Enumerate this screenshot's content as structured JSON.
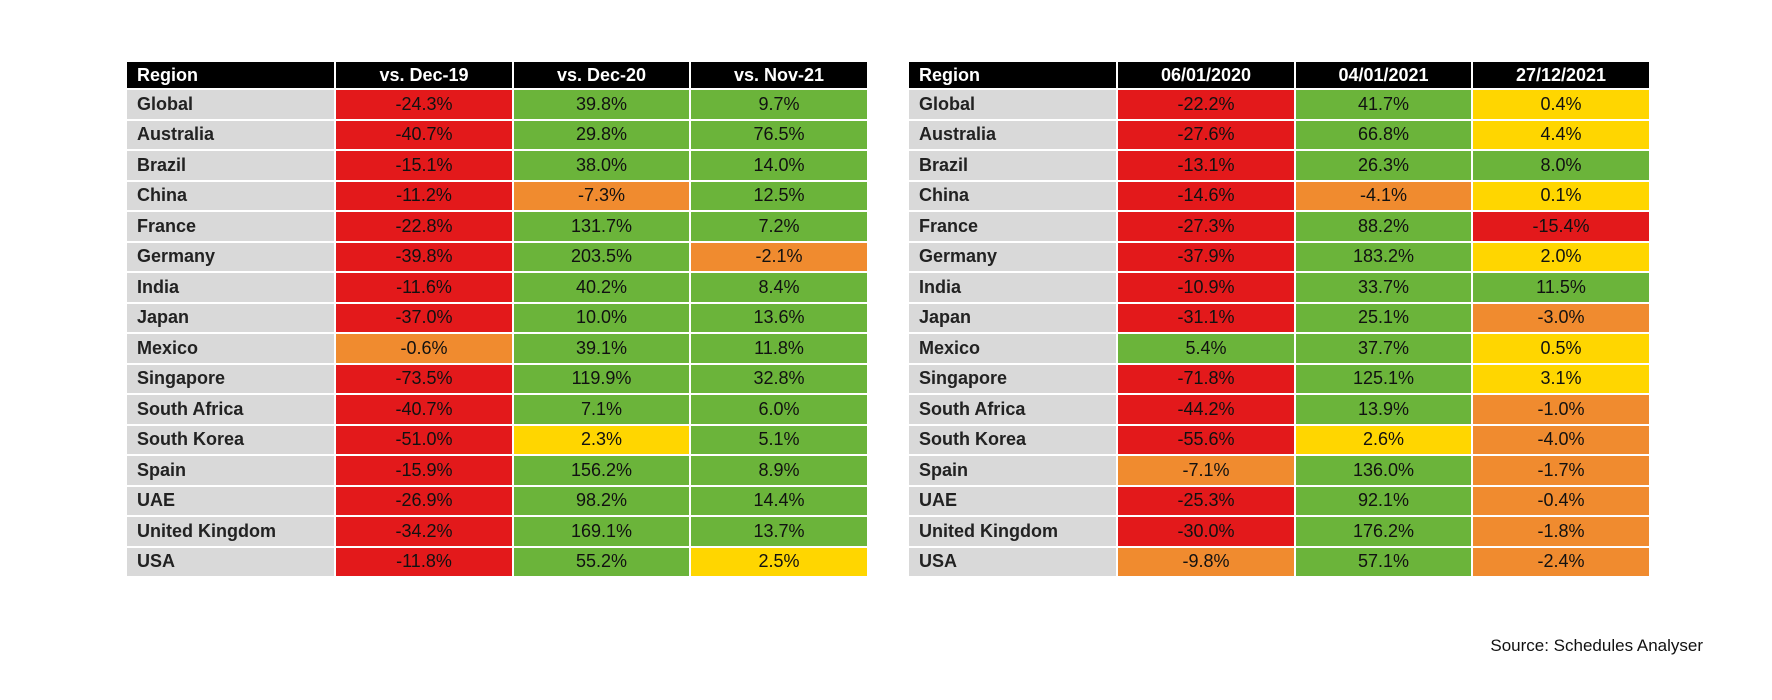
{
  "tables": [
    {
      "header": [
        "Region",
        "vs. Dec-19",
        "vs. Dec-20",
        "vs. Nov-21"
      ],
      "rows": [
        {
          "cells": [
            "Global",
            "-24.3%",
            "39.8%",
            "9.7%"
          ],
          "fills": [
            "#e3191b",
            "#6bb43a",
            "#6bb43a"
          ]
        },
        {
          "cells": [
            "Australia",
            "-40.7%",
            "29.8%",
            "76.5%"
          ],
          "fills": [
            "#e3191b",
            "#6bb43a",
            "#6bb43a"
          ]
        },
        {
          "cells": [
            "Brazil",
            "-15.1%",
            "38.0%",
            "14.0%"
          ],
          "fills": [
            "#e3191b",
            "#6bb43a",
            "#6bb43a"
          ]
        },
        {
          "cells": [
            "China",
            "-11.2%",
            "-7.3%",
            "12.5%"
          ],
          "fills": [
            "#e3191b",
            "#f08b2f",
            "#6bb43a"
          ]
        },
        {
          "cells": [
            "France",
            "-22.8%",
            "131.7%",
            "7.2%"
          ],
          "fills": [
            "#e3191b",
            "#6bb43a",
            "#6bb43a"
          ]
        },
        {
          "cells": [
            "Germany",
            "-39.8%",
            "203.5%",
            "-2.1%"
          ],
          "fills": [
            "#e3191b",
            "#6bb43a",
            "#f08b2f"
          ]
        },
        {
          "cells": [
            "India",
            "-11.6%",
            "40.2%",
            "8.4%"
          ],
          "fills": [
            "#e3191b",
            "#6bb43a",
            "#6bb43a"
          ]
        },
        {
          "cells": [
            "Japan",
            "-37.0%",
            "10.0%",
            "13.6%"
          ],
          "fills": [
            "#e3191b",
            "#6bb43a",
            "#6bb43a"
          ]
        },
        {
          "cells": [
            "Mexico",
            "-0.6%",
            "39.1%",
            "11.8%"
          ],
          "fills": [
            "#f08b2f",
            "#6bb43a",
            "#6bb43a"
          ]
        },
        {
          "cells": [
            "Singapore",
            "-73.5%",
            "119.9%",
            "32.8%"
          ],
          "fills": [
            "#e3191b",
            "#6bb43a",
            "#6bb43a"
          ]
        },
        {
          "cells": [
            "South Africa",
            "-40.7%",
            "7.1%",
            "6.0%"
          ],
          "fills": [
            "#e3191b",
            "#6bb43a",
            "#6bb43a"
          ]
        },
        {
          "cells": [
            "South Korea",
            "-51.0%",
            "2.3%",
            "5.1%"
          ],
          "fills": [
            "#e3191b",
            "#ffd600",
            "#6bb43a"
          ]
        },
        {
          "cells": [
            "Spain",
            "-15.9%",
            "156.2%",
            "8.9%"
          ],
          "fills": [
            "#e3191b",
            "#6bb43a",
            "#6bb43a"
          ]
        },
        {
          "cells": [
            "UAE",
            "-26.9%",
            "98.2%",
            "14.4%"
          ],
          "fills": [
            "#e3191b",
            "#6bb43a",
            "#6bb43a"
          ]
        },
        {
          "cells": [
            "United Kingdom",
            "-34.2%",
            "169.1%",
            "13.7%"
          ],
          "fills": [
            "#e3191b",
            "#6bb43a",
            "#6bb43a"
          ]
        },
        {
          "cells": [
            "USA",
            "-11.8%",
            "55.2%",
            "2.5%"
          ],
          "fills": [
            "#e3191b",
            "#6bb43a",
            "#ffd600"
          ]
        }
      ]
    },
    {
      "header": [
        "Region",
        "06/01/2020",
        "04/01/2021",
        "27/12/2021"
      ],
      "rows": [
        {
          "cells": [
            "Global",
            "-22.2%",
            "41.7%",
            "0.4%"
          ],
          "fills": [
            "#e3191b",
            "#6bb43a",
            "#ffd600"
          ]
        },
        {
          "cells": [
            "Australia",
            "-27.6%",
            "66.8%",
            "4.4%"
          ],
          "fills": [
            "#e3191b",
            "#6bb43a",
            "#ffd600"
          ]
        },
        {
          "cells": [
            "Brazil",
            "-13.1%",
            "26.3%",
            "8.0%"
          ],
          "fills": [
            "#e3191b",
            "#6bb43a",
            "#6bb43a"
          ]
        },
        {
          "cells": [
            "China",
            "-14.6%",
            "-4.1%",
            "0.1%"
          ],
          "fills": [
            "#e3191b",
            "#f08b2f",
            "#ffd600"
          ]
        },
        {
          "cells": [
            "France",
            "-27.3%",
            "88.2%",
            "-15.4%"
          ],
          "fills": [
            "#e3191b",
            "#6bb43a",
            "#e3191b"
          ]
        },
        {
          "cells": [
            "Germany",
            "-37.9%",
            "183.2%",
            "2.0%"
          ],
          "fills": [
            "#e3191b",
            "#6bb43a",
            "#ffd600"
          ]
        },
        {
          "cells": [
            "India",
            "-10.9%",
            "33.7%",
            "11.5%"
          ],
          "fills": [
            "#e3191b",
            "#6bb43a",
            "#6bb43a"
          ]
        },
        {
          "cells": [
            "Japan",
            "-31.1%",
            "25.1%",
            "-3.0%"
          ],
          "fills": [
            "#e3191b",
            "#6bb43a",
            "#f08b2f"
          ]
        },
        {
          "cells": [
            "Mexico",
            "5.4%",
            "37.7%",
            "0.5%"
          ],
          "fills": [
            "#6bb43a",
            "#6bb43a",
            "#ffd600"
          ]
        },
        {
          "cells": [
            "Singapore",
            "-71.8%",
            "125.1%",
            "3.1%"
          ],
          "fills": [
            "#e3191b",
            "#6bb43a",
            "#ffd600"
          ]
        },
        {
          "cells": [
            "South Africa",
            "-44.2%",
            "13.9%",
            "-1.0%"
          ],
          "fills": [
            "#e3191b",
            "#6bb43a",
            "#f08b2f"
          ]
        },
        {
          "cells": [
            "South Korea",
            "-55.6%",
            "2.6%",
            "-4.0%"
          ],
          "fills": [
            "#e3191b",
            "#ffd600",
            "#f08b2f"
          ]
        },
        {
          "cells": [
            "Spain",
            "-7.1%",
            "136.0%",
            "-1.7%"
          ],
          "fills": [
            "#f08b2f",
            "#6bb43a",
            "#f08b2f"
          ]
        },
        {
          "cells": [
            "UAE",
            "-25.3%",
            "92.1%",
            "-0.4%"
          ],
          "fills": [
            "#e3191b",
            "#6bb43a",
            "#f08b2f"
          ]
        },
        {
          "cells": [
            "United Kingdom",
            "-30.0%",
            "176.2%",
            "-1.8%"
          ],
          "fills": [
            "#e3191b",
            "#6bb43a",
            "#f08b2f"
          ]
        },
        {
          "cells": [
            "USA",
            "-9.8%",
            "57.1%",
            "-2.4%"
          ],
          "fills": [
            "#f08b2f",
            "#6bb43a",
            "#f08b2f"
          ]
        }
      ]
    }
  ],
  "source": "Source: Schedules Analyser"
}
